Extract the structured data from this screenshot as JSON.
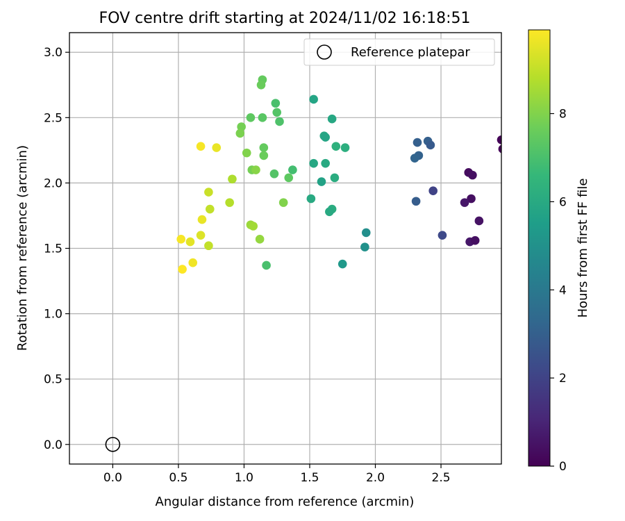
{
  "chart_data": {
    "type": "scatter",
    "title": "FOV centre drift starting at 2024/11/02 16:18:51",
    "xlabel": "Angular distance from reference (arcmin)",
    "ylabel": "Rotation from reference (arcmin)",
    "xlim": [
      -0.33,
      2.96
    ],
    "ylim": [
      -0.15,
      3.15
    ],
    "xticks": [
      "0.0",
      "0.5",
      "1.0",
      "1.5",
      "2.0",
      "2.5"
    ],
    "yticks": [
      "0.0",
      "0.5",
      "1.0",
      "1.5",
      "2.0",
      "2.5",
      "3.0"
    ],
    "grid": true,
    "legend": {
      "placement": "top-right",
      "entries": [
        {
          "label": "Reference platepar",
          "marker": "open-circle"
        }
      ]
    },
    "reference_point": {
      "x": 0.0,
      "y": 0.0
    },
    "colorbar": {
      "label": "Hours from first FF file",
      "ticks": [
        "0",
        "2",
        "4",
        "6",
        "8"
      ],
      "range": [
        0,
        9.9
      ],
      "colormap": "viridis"
    },
    "points": [
      {
        "x": 2.96,
        "y": 2.33,
        "h": 0.1
      },
      {
        "x": 2.97,
        "y": 2.26,
        "h": 0.1
      },
      {
        "x": 2.71,
        "y": 2.08,
        "h": 0.3
      },
      {
        "x": 2.74,
        "y": 2.06,
        "h": 0.4
      },
      {
        "x": 2.73,
        "y": 1.88,
        "h": 0.4
      },
      {
        "x": 2.68,
        "y": 1.85,
        "h": 0.6
      },
      {
        "x": 2.79,
        "y": 1.71,
        "h": 0.5
      },
      {
        "x": 2.72,
        "y": 1.55,
        "h": 0.6
      },
      {
        "x": 2.76,
        "y": 1.56,
        "h": 0.4
      },
      {
        "x": 2.51,
        "y": 1.6,
        "h": 2.2
      },
      {
        "x": 2.44,
        "y": 1.94,
        "h": 2.0
      },
      {
        "x": 2.31,
        "y": 1.86,
        "h": 2.9
      },
      {
        "x": 2.32,
        "y": 2.31,
        "h": 3.0
      },
      {
        "x": 2.4,
        "y": 2.32,
        "h": 3.0
      },
      {
        "x": 2.42,
        "y": 2.29,
        "h": 2.8
      },
      {
        "x": 2.33,
        "y": 2.21,
        "h": 3.1
      },
      {
        "x": 2.3,
        "y": 2.19,
        "h": 3.2
      },
      {
        "x": 1.93,
        "y": 1.62,
        "h": 4.9
      },
      {
        "x": 1.92,
        "y": 1.51,
        "h": 5.0
      },
      {
        "x": 1.75,
        "y": 1.38,
        "h": 5.3
      },
      {
        "x": 1.53,
        "y": 2.64,
        "h": 5.8
      },
      {
        "x": 1.67,
        "y": 2.49,
        "h": 5.9
      },
      {
        "x": 1.61,
        "y": 2.36,
        "h": 5.9
      },
      {
        "x": 1.62,
        "y": 2.35,
        "h": 5.8
      },
      {
        "x": 1.7,
        "y": 2.28,
        "h": 6.3
      },
      {
        "x": 1.77,
        "y": 2.27,
        "h": 6.2
      },
      {
        "x": 1.53,
        "y": 2.15,
        "h": 5.9
      },
      {
        "x": 1.62,
        "y": 2.15,
        "h": 6.0
      },
      {
        "x": 1.59,
        "y": 2.01,
        "h": 5.7
      },
      {
        "x": 1.69,
        "y": 2.04,
        "h": 6.1
      },
      {
        "x": 1.51,
        "y": 1.88,
        "h": 6.0
      },
      {
        "x": 1.67,
        "y": 1.8,
        "h": 6.1
      },
      {
        "x": 1.65,
        "y": 1.78,
        "h": 6.0
      },
      {
        "x": 1.24,
        "y": 2.61,
        "h": 7.0
      },
      {
        "x": 1.25,
        "y": 2.54,
        "h": 7.2
      },
      {
        "x": 1.27,
        "y": 2.47,
        "h": 7.1
      },
      {
        "x": 1.14,
        "y": 2.79,
        "h": 7.5
      },
      {
        "x": 1.13,
        "y": 2.75,
        "h": 7.6
      },
      {
        "x": 1.05,
        "y": 2.5,
        "h": 7.4
      },
      {
        "x": 1.14,
        "y": 2.5,
        "h": 7.3
      },
      {
        "x": 0.98,
        "y": 2.43,
        "h": 7.8
      },
      {
        "x": 0.97,
        "y": 2.38,
        "h": 7.9
      },
      {
        "x": 1.15,
        "y": 2.27,
        "h": 7.5
      },
      {
        "x": 1.15,
        "y": 2.21,
        "h": 7.6
      },
      {
        "x": 1.02,
        "y": 2.23,
        "h": 8.0
      },
      {
        "x": 1.06,
        "y": 2.1,
        "h": 7.8
      },
      {
        "x": 1.09,
        "y": 2.1,
        "h": 8.1
      },
      {
        "x": 1.23,
        "y": 2.07,
        "h": 7.2
      },
      {
        "x": 1.37,
        "y": 2.1,
        "h": 6.9
      },
      {
        "x": 1.34,
        "y": 2.04,
        "h": 7.4
      },
      {
        "x": 1.3,
        "y": 1.85,
        "h": 8.0
      },
      {
        "x": 1.17,
        "y": 1.37,
        "h": 7.0
      },
      {
        "x": 1.12,
        "y": 1.57,
        "h": 8.3
      },
      {
        "x": 1.05,
        "y": 1.68,
        "h": 8.4
      },
      {
        "x": 1.07,
        "y": 1.67,
        "h": 8.5
      },
      {
        "x": 0.91,
        "y": 2.03,
        "h": 8.7
      },
      {
        "x": 0.89,
        "y": 1.85,
        "h": 8.8
      },
      {
        "x": 0.74,
        "y": 1.8,
        "h": 9.0
      },
      {
        "x": 0.73,
        "y": 1.93,
        "h": 9.1
      },
      {
        "x": 0.73,
        "y": 1.52,
        "h": 9.0
      },
      {
        "x": 0.67,
        "y": 2.28,
        "h": 9.8
      },
      {
        "x": 0.79,
        "y": 2.27,
        "h": 9.6
      },
      {
        "x": 0.68,
        "y": 1.72,
        "h": 9.6
      },
      {
        "x": 0.67,
        "y": 1.6,
        "h": 9.4
      },
      {
        "x": 0.52,
        "y": 1.57,
        "h": 9.8
      },
      {
        "x": 0.59,
        "y": 1.55,
        "h": 9.5
      },
      {
        "x": 0.61,
        "y": 1.39,
        "h": 9.7
      },
      {
        "x": 0.53,
        "y": 1.34,
        "h": 9.9
      }
    ]
  }
}
